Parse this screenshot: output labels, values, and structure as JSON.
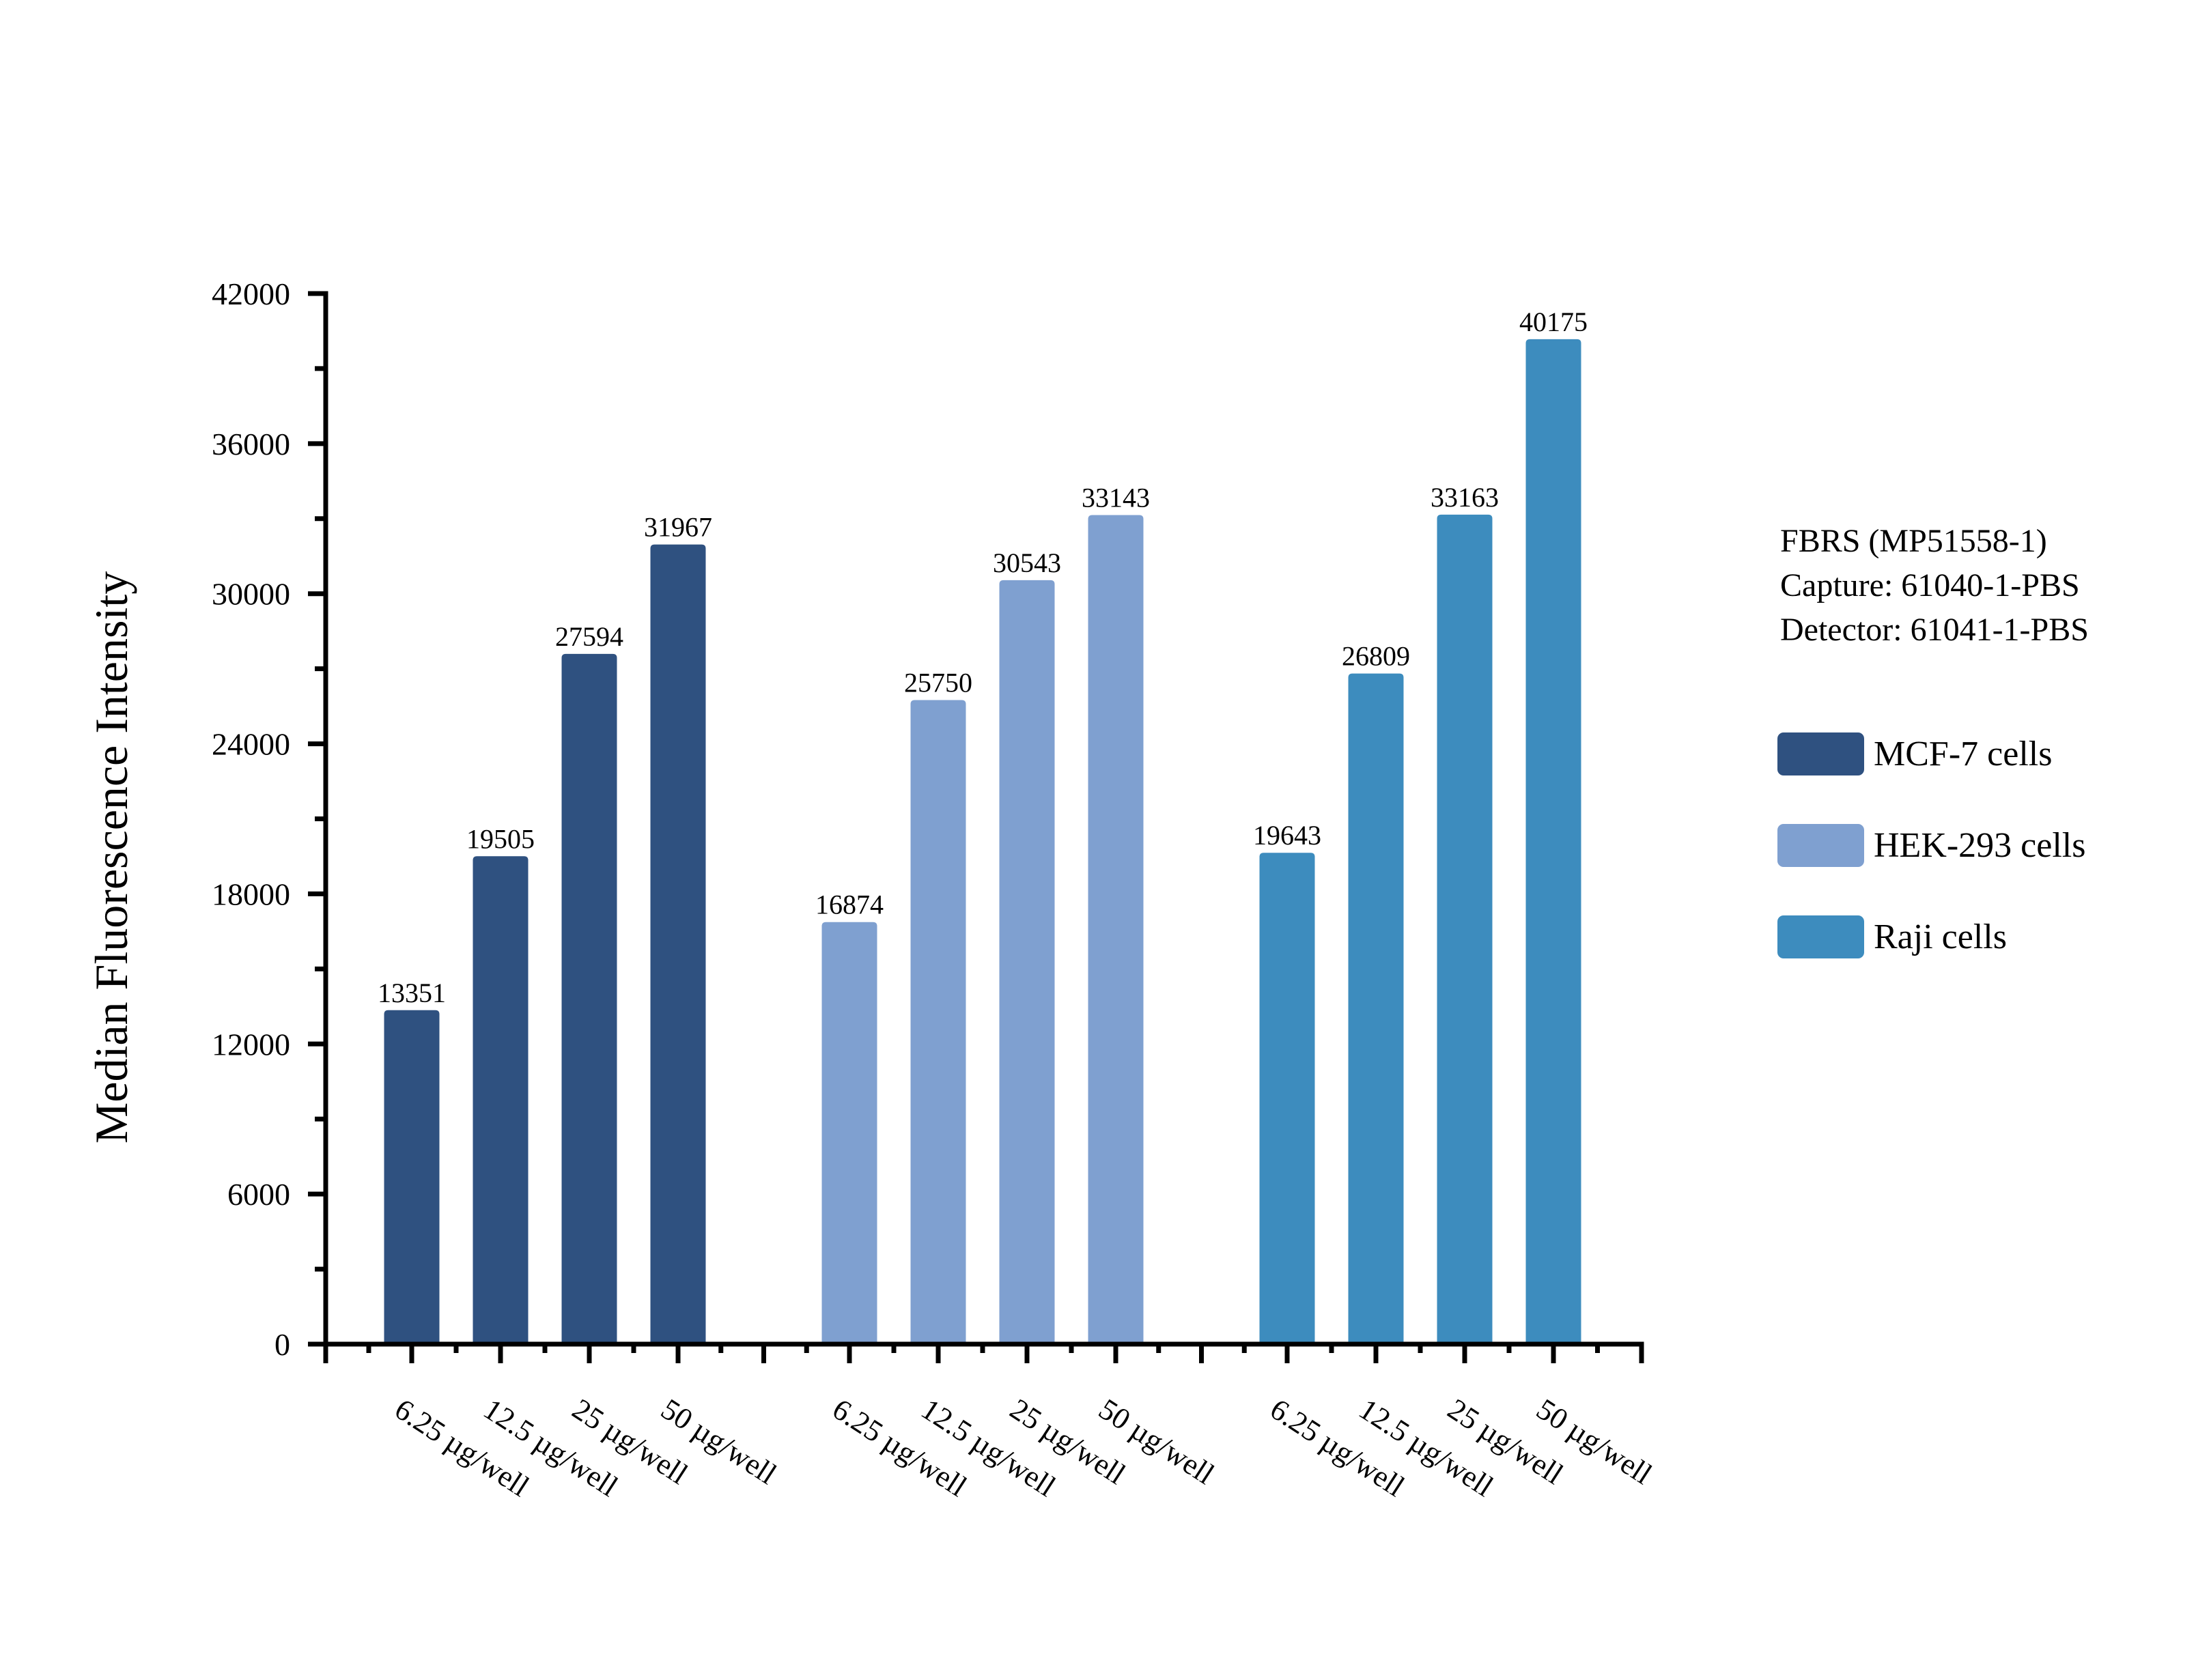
{
  "page": {
    "background": "#FFFFFF"
  },
  "chart_data": {
    "type": "bar",
    "title": "",
    "xlabel": "",
    "ylabel": "Median Fluorescence Intensity",
    "ylim": [
      0,
      42000
    ],
    "ytick_step": 6000,
    "yminor_step": 3000,
    "ytick_labels": [
      "0",
      "6000",
      "12000",
      "18000",
      "24000",
      "30000",
      "36000",
      "42000"
    ],
    "grid": false,
    "bar_value_labels_shown": true,
    "legend_position": "right-outside",
    "categories": [
      "6.25 µg/well",
      "12.5 µg/well",
      "25 µg/well",
      "50 µg/well"
    ],
    "series": [
      {
        "name": "MCF-7 cells",
        "color": "#2F5180",
        "values": [
          13351,
          19505,
          27594,
          31967
        ]
      },
      {
        "name": "HEK-293 cells",
        "color": "#7FA0D0",
        "values": [
          16874,
          25750,
          30543,
          33143
        ]
      },
      {
        "name": "Raji cells",
        "color": "#3D8CBE",
        "values": [
          19643,
          26809,
          33163,
          40175
        ]
      }
    ]
  },
  "legend": {
    "header_lines": [
      "FBRS (MP51558-1)",
      "Capture: 61040-1-PBS",
      "Detector: 61041-1-PBS"
    ]
  }
}
